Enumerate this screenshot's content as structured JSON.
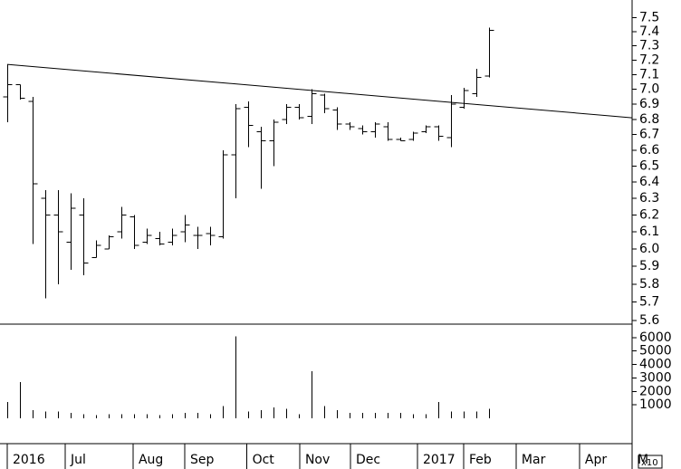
{
  "chart_data": [
    {
      "type": "ohlc",
      "log": true,
      "color": "#000000",
      "x": [
        0,
        1,
        2,
        3,
        4,
        5,
        6,
        7,
        8,
        9,
        10,
        11,
        12,
        13,
        14,
        15,
        16,
        17,
        18,
        19,
        20,
        21,
        22,
        23,
        24,
        25,
        26,
        27,
        28,
        29,
        30,
        31,
        32,
        33,
        34,
        35,
        36,
        37,
        38
      ],
      "open": [
        6.95,
        7.03,
        6.92,
        6.3,
        6.2,
        6.04,
        6.2,
        5.95,
        6.0,
        6.1,
        6.19,
        6.04,
        6.06,
        6.04,
        6.1,
        6.08,
        6.09,
        6.07,
        6.57,
        6.88,
        6.72,
        6.66,
        6.8,
        6.88,
        6.82,
        6.96,
        6.86,
        6.77,
        6.74,
        6.72,
        6.75,
        6.67,
        6.67,
        6.72,
        6.75,
        6.68,
        6.88,
        6.97,
        7.09
      ],
      "high": [
        7.17,
        7.03,
        6.95,
        6.35,
        6.35,
        6.33,
        6.3,
        6.05,
        6.08,
        6.25,
        6.2,
        6.12,
        6.1,
        6.12,
        6.2,
        6.13,
        6.13,
        6.6,
        6.9,
        6.92,
        6.75,
        6.8,
        6.9,
        6.9,
        7.0,
        6.97,
        6.88,
        6.78,
        6.76,
        6.78,
        6.78,
        6.68,
        6.72,
        6.76,
        6.76,
        6.96,
        7.01,
        7.14,
        7.43
      ],
      "low": [
        6.78,
        6.93,
        6.03,
        5.72,
        5.8,
        5.88,
        5.85,
        5.95,
        6.0,
        6.06,
        6.0,
        6.03,
        6.02,
        6.02,
        6.04,
        6.0,
        6.02,
        6.06,
        6.3,
        6.62,
        6.36,
        6.5,
        6.77,
        6.8,
        6.77,
        6.84,
        6.73,
        6.73,
        6.7,
        6.68,
        6.66,
        6.66,
        6.66,
        6.71,
        6.66,
        6.62,
        6.87,
        6.95,
        7.08
      ],
      "close": [
        7.03,
        6.94,
        6.39,
        6.2,
        6.1,
        6.24,
        5.92,
        6.02,
        6.07,
        6.2,
        6.02,
        6.08,
        6.03,
        6.08,
        6.14,
        6.08,
        6.08,
        6.57,
        6.87,
        6.76,
        6.66,
        6.78,
        6.88,
        6.81,
        6.97,
        6.87,
        6.77,
        6.75,
        6.72,
        6.77,
        6.67,
        6.66,
        6.71,
        6.75,
        6.69,
        6.9,
        6.99,
        7.08,
        7.41
      ],
      "trendline": {
        "x": [
          0,
          49.29
        ],
        "y": [
          7.17,
          6.81
        ]
      },
      "xlim": [
        -0.57,
        49.29
      ],
      "xticks": [
        {
          "value": 0,
          "label": "2016"
        },
        {
          "value": 4.57,
          "label": "Jul"
        },
        {
          "value": 9.93,
          "label": "Aug"
        },
        {
          "value": 14,
          "label": "Sep"
        },
        {
          "value": 18.9,
          "label": "Oct"
        },
        {
          "value": 23.07,
          "label": "Nov"
        },
        {
          "value": 27.07,
          "label": "Dec"
        },
        {
          "value": 32.36,
          "label": "2017"
        },
        {
          "value": 36,
          "label": "Feb"
        },
        {
          "value": 40.14,
          "label": "Mar"
        },
        {
          "value": 45.14,
          "label": "Apr"
        },
        {
          "value": 49.29,
          "label": "M"
        }
      ],
      "ylim": [
        5.58,
        7.63
      ],
      "yticks": [
        5.6,
        5.7,
        5.8,
        5.9,
        {
          "value": 6,
          "label": "6.0"
        },
        6.1,
        6.2,
        6.3,
        6.4,
        6.5,
        6.6,
        6.7,
        6.8,
        6.9,
        {
          "value": 7,
          "label": "7.0"
        },
        7.1,
        7.2,
        7.3,
        7.4,
        7.5
      ]
    },
    {
      "type": "bar",
      "color": "#000000",
      "multiplier": "x10",
      "x": [
        0,
        1,
        2,
        3,
        4,
        5,
        6,
        7,
        8,
        9,
        10,
        11,
        12,
        13,
        14,
        15,
        16,
        17,
        18,
        19,
        20,
        21,
        22,
        23,
        24,
        25,
        26,
        27,
        28,
        29,
        30,
        31,
        32,
        33,
        34,
        35,
        36,
        37,
        38
      ],
      "values": [
        1200,
        2700,
        600,
        500,
        500,
        400,
        300,
        250,
        300,
        300,
        300,
        300,
        250,
        300,
        400,
        400,
        300,
        900,
        6100,
        500,
        600,
        800,
        700,
        300,
        3500,
        900,
        600,
        400,
        400,
        400,
        400,
        400,
        300,
        300,
        1200,
        500,
        500,
        500,
        700
      ],
      "ylim": [
        0,
        7000
      ],
      "yticks": [
        1000,
        2000,
        3000,
        4000,
        5000,
        6000
      ]
    }
  ]
}
